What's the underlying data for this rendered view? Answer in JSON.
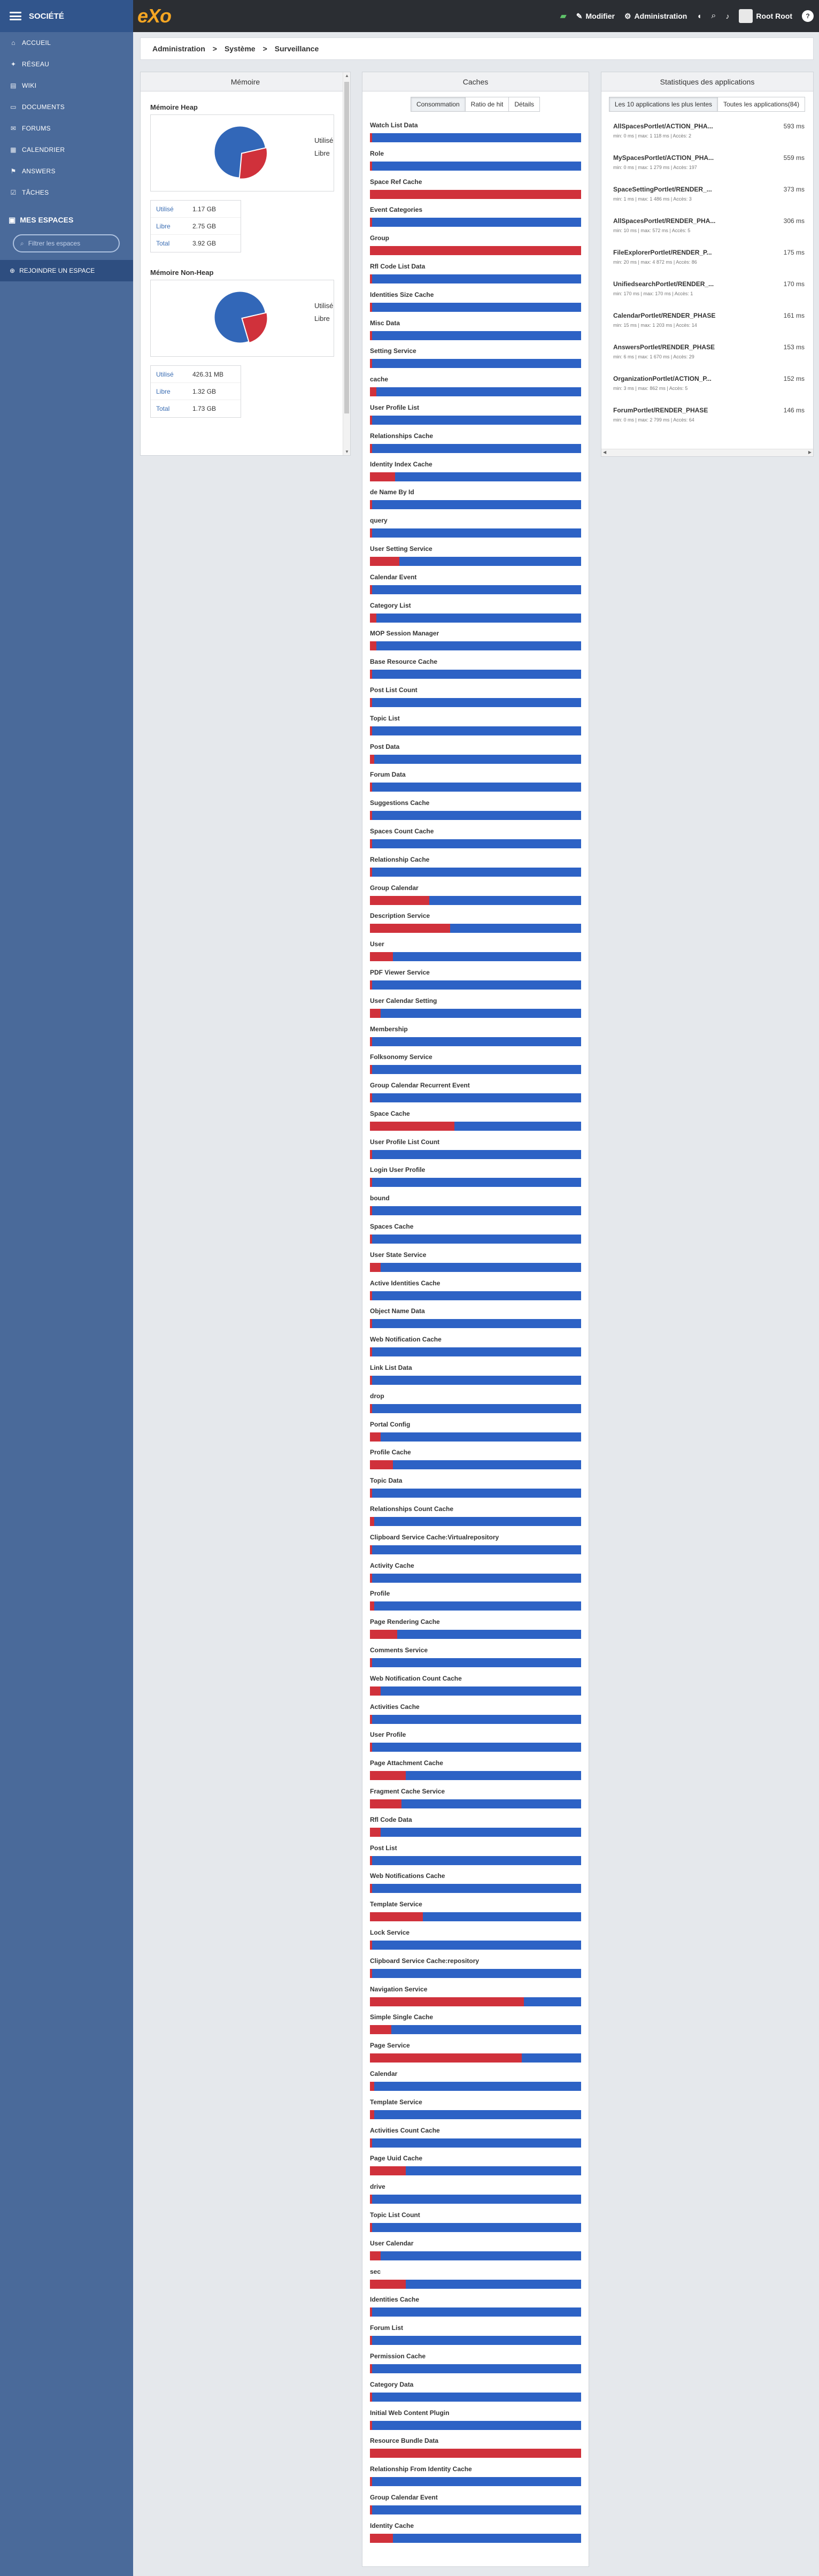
{
  "sidebar": {
    "company": "SOCIÉTÉ",
    "nav": [
      {
        "label": "ACCUEIL",
        "icon": "home-icon",
        "glyph": "⌂"
      },
      {
        "label": "RÉSEAU",
        "icon": "network-icon",
        "glyph": "✦"
      },
      {
        "label": "WIKI",
        "icon": "wiki-icon",
        "glyph": "▤"
      },
      {
        "label": "DOCUMENTS",
        "icon": "documents-icon",
        "glyph": "▭"
      },
      {
        "label": "FORUMS",
        "icon": "forums-icon",
        "glyph": "✉"
      },
      {
        "label": "CALENDRIER",
        "icon": "calendar-icon",
        "glyph": "▦"
      },
      {
        "label": "ANSWERS",
        "icon": "answers-icon",
        "glyph": "⚑"
      },
      {
        "label": "TÂCHES",
        "icon": "tasks-icon",
        "glyph": "☑"
      }
    ],
    "spaces_title": "MES ESPACES",
    "search_placeholder": "Filtrer les espaces",
    "join_label": "REJOINDRE UN ESPACE"
  },
  "topbar": {
    "logo": "eXo",
    "edit_label": "Modifier",
    "admin_label": "Administration",
    "user_name": "Root Root"
  },
  "breadcrumb": [
    "Administration",
    "Système",
    "Surveillance"
  ],
  "memory": {
    "title": "Mémoire",
    "legend_used": "Utilisé",
    "legend_free": "Libre",
    "colors": {
      "used": "#d0313b",
      "free": "#3267b8"
    },
    "heap": {
      "title": "Mémoire Heap",
      "used_fraction": 0.3,
      "rows": [
        {
          "label": "Utilisé",
          "value": "1.17 GB"
        },
        {
          "label": "Libre",
          "value": "2.75 GB"
        },
        {
          "label": "Total",
          "value": "3.92 GB"
        }
      ]
    },
    "nonheap": {
      "title": "Mémoire Non-Heap",
      "used_fraction": 0.24,
      "rows": [
        {
          "label": "Utilisé",
          "value": "426.31 MB"
        },
        {
          "label": "Libre",
          "value": "1.32 GB"
        },
        {
          "label": "Total",
          "value": "1.73 GB"
        }
      ]
    }
  },
  "caches": {
    "title": "Caches",
    "tabs": [
      "Consommation",
      "Ratio de hit",
      "Détails"
    ],
    "active_tab": 0,
    "colors": {
      "used": "#d0313b",
      "free": "#2d62c5"
    },
    "items": [
      {
        "name": "Watch List Data",
        "used": 0.01
      },
      {
        "name": "Role",
        "used": 0.01
      },
      {
        "name": "Space Ref Cache",
        "used": 1.0
      },
      {
        "name": "Event Categories",
        "used": 0.01
      },
      {
        "name": "Group",
        "used": 1.0
      },
      {
        "name": "Rfl Code List Data",
        "used": 0.01
      },
      {
        "name": "Identities Size Cache",
        "used": 0.01
      },
      {
        "name": "Misc Data",
        "used": 0.01
      },
      {
        "name": "Setting Service",
        "used": 0.01
      },
      {
        "name": "cache",
        "used": 0.03
      },
      {
        "name": "User Profile List",
        "used": 0.01
      },
      {
        "name": "Relationships Cache",
        "used": 0.01
      },
      {
        "name": "Identity Index Cache",
        "used": 0.12
      },
      {
        "name": "de Name By Id",
        "used": 0.01
      },
      {
        "name": "query",
        "used": 0.01
      },
      {
        "name": "User Setting Service",
        "used": 0.14
      },
      {
        "name": "Calendar Event",
        "used": 0.01
      },
      {
        "name": "Category List",
        "used": 0.03
      },
      {
        "name": "MOP Session Manager",
        "used": 0.03
      },
      {
        "name": "Base Resource Cache",
        "used": 0.01
      },
      {
        "name": "Post List Count",
        "used": 0.01
      },
      {
        "name": "Topic List",
        "used": 0.01
      },
      {
        "name": "Post Data",
        "used": 0.02
      },
      {
        "name": "Forum Data",
        "used": 0.01
      },
      {
        "name": "Suggestions Cache",
        "used": 0.01
      },
      {
        "name": "Spaces Count Cache",
        "used": 0.01
      },
      {
        "name": "Relationship Cache",
        "used": 0.01
      },
      {
        "name": "Group Calendar",
        "used": 0.28
      },
      {
        "name": "Description Service",
        "used": 0.38
      },
      {
        "name": "User",
        "used": 0.11
      },
      {
        "name": "PDF Viewer Service",
        "used": 0.01
      },
      {
        "name": "User Calendar Setting",
        "used": 0.05
      },
      {
        "name": "Membership",
        "used": 0.01
      },
      {
        "name": "Folksonomy Service",
        "used": 0.01
      },
      {
        "name": "Group Calendar Recurrent Event",
        "used": 0.01
      },
      {
        "name": "Space Cache",
        "used": 0.4
      },
      {
        "name": "User Profile List Count",
        "used": 0.01
      },
      {
        "name": "Login User Profile",
        "used": 0.01
      },
      {
        "name": "bound",
        "used": 0.01
      },
      {
        "name": "Spaces Cache",
        "used": 0.01
      },
      {
        "name": "User State Service",
        "used": 0.05
      },
      {
        "name": "Active Identities Cache",
        "used": 0.01
      },
      {
        "name": "Object Name Data",
        "used": 0.01
      },
      {
        "name": "Web Notification Cache",
        "used": 0.01
      },
      {
        "name": "Link List Data",
        "used": 0.01
      },
      {
        "name": "drop",
        "used": 0.01
      },
      {
        "name": "Portal Config",
        "used": 0.05
      },
      {
        "name": "Profile Cache",
        "used": 0.11
      },
      {
        "name": "Topic Data",
        "used": 0.01
      },
      {
        "name": "Relationships Count Cache",
        "used": 0.02
      },
      {
        "name": "Clipboard Service Cache:Virtualrepository",
        "used": 0.01
      },
      {
        "name": "Activity Cache",
        "used": 0.01
      },
      {
        "name": "Profile",
        "used": 0.02
      },
      {
        "name": "Page Rendering Cache",
        "used": 0.13
      },
      {
        "name": "Comments Service",
        "used": 0.01
      },
      {
        "name": "Web Notification Count Cache",
        "used": 0.05
      },
      {
        "name": "Activities Cache",
        "used": 0.01
      },
      {
        "name": "User Profile",
        "used": 0.01
      },
      {
        "name": "Page Attachment Cache",
        "used": 0.17
      },
      {
        "name": "Fragment Cache Service",
        "used": 0.15
      },
      {
        "name": "Rfl Code Data",
        "used": 0.05
      },
      {
        "name": "Post List",
        "used": 0.01
      },
      {
        "name": "Web Notifications Cache",
        "used": 0.01
      },
      {
        "name": "Template Service",
        "used": 0.25
      },
      {
        "name": "Lock Service",
        "used": 0.01
      },
      {
        "name": "Clipboard Service Cache:repository",
        "used": 0.01
      },
      {
        "name": "Navigation Service",
        "used": 0.73
      },
      {
        "name": "Simple Single Cache",
        "used": 0.1
      },
      {
        "name": "Page Service",
        "used": 0.72
      },
      {
        "name": "Calendar",
        "used": 0.02
      },
      {
        "name": "Template Service",
        "used": 0.02
      },
      {
        "name": "Activities Count Cache",
        "used": 0.01
      },
      {
        "name": "Page Uuid Cache",
        "used": 0.17
      },
      {
        "name": "drive",
        "used": 0.01
      },
      {
        "name": "Topic List Count",
        "used": 0.01
      },
      {
        "name": "User Calendar",
        "used": 0.05
      },
      {
        "name": "sec",
        "used": 0.17
      },
      {
        "name": "Identities Cache",
        "used": 0.01
      },
      {
        "name": "Forum List",
        "used": 0.01
      },
      {
        "name": "Permission Cache",
        "used": 0.01
      },
      {
        "name": "Category Data",
        "used": 0.01
      },
      {
        "name": "Initial Web Content Plugin",
        "used": 0.01
      },
      {
        "name": "Resource Bundle Data",
        "used": 1.0
      },
      {
        "name": "Relationship From Identity Cache",
        "used": 0.01
      },
      {
        "name": "Group Calendar Event",
        "used": 0.01
      },
      {
        "name": "Identity Cache",
        "used": 0.11
      }
    ]
  },
  "apps": {
    "title": "Statistiques des applications",
    "tabs": [
      "Les 10 applications les plus lentes",
      "Toutes les applications(84)"
    ],
    "active_tab": 0,
    "items": [
      {
        "name": "AllSpacesPortlet/ACTION_PHA...",
        "ms": "593 ms",
        "sub": "min: 0 ms | max: 1 118 ms | Accès: 2"
      },
      {
        "name": "MySpacesPortlet/ACTION_PHA...",
        "ms": "559 ms",
        "sub": "min: 0 ms | max: 1 279 ms | Accès: 197"
      },
      {
        "name": "SpaceSettingPortlet/RENDER_...",
        "ms": "373 ms",
        "sub": "min: 1 ms | max: 1 486 ms | Accès: 3"
      },
      {
        "name": "AllSpacesPortlet/RENDER_PHA...",
        "ms": "306 ms",
        "sub": "min: 10 ms | max: 572 ms | Accès: 5"
      },
      {
        "name": "FileExplorerPortlet/RENDER_P...",
        "ms": "175 ms",
        "sub": "min: 20 ms | max: 4 872 ms | Accès: 86"
      },
      {
        "name": "UnifiedsearchPortlet/RENDER_...",
        "ms": "170 ms",
        "sub": "min: 170 ms | max: 170 ms | Accès: 1"
      },
      {
        "name": "CalendarPortlet/RENDER_PHASE",
        "ms": "161 ms",
        "sub": "min: 15 ms | max: 1 203 ms | Accès: 14"
      },
      {
        "name": "AnswersPortlet/RENDER_PHASE",
        "ms": "153 ms",
        "sub": "min: 6 ms | max: 1 670 ms | Accès: 29"
      },
      {
        "name": "OrganizationPortlet/ACTION_P...",
        "ms": "152 ms",
        "sub": "min: 3 ms | max: 862 ms | Accès: 5"
      },
      {
        "name": "ForumPortlet/RENDER_PHASE",
        "ms": "146 ms",
        "sub": "min: 0 ms | max: 2 799 ms | Accès: 64"
      }
    ]
  }
}
